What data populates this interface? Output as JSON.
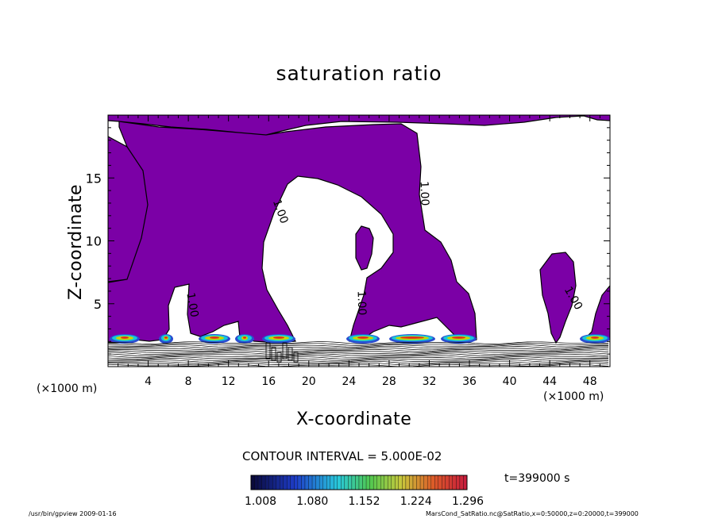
{
  "chart_data": {
    "type": "contour",
    "title": "saturation ratio",
    "xlabel": "X-coordinate",
    "ylabel": "Z-coordinate",
    "x_unit_label": "(×1000 m)",
    "x_ticks": [
      4,
      8,
      12,
      16,
      20,
      24,
      28,
      32,
      36,
      40,
      44,
      48
    ],
    "x_tick_labels": [
      "4",
      "8",
      "12",
      "16",
      "20",
      "24",
      "28",
      "32",
      "36",
      "40",
      "44",
      "48"
    ],
    "y_ticks": [
      5,
      10,
      15
    ],
    "y_tick_labels": [
      "5",
      "10",
      "15"
    ],
    "xlim": [
      0,
      50
    ],
    "ylim": [
      0,
      20
    ],
    "contour_interval_text": "CONTOUR INTERVAL = 5.000E-02",
    "contour_labels": [
      "1.00",
      "1.00",
      "1.00",
      "1.00",
      "1.00"
    ],
    "colorbar": {
      "min": 1.008,
      "max": 1.296,
      "tick_labels": [
        "1.008",
        "1.080",
        "1.152",
        "1.224",
        "1.296"
      ]
    },
    "time_label": "t=399000 s",
    "fill_color": "#7b00a6",
    "footer_left": "/usr/bin/gpview   2009-01-16",
    "footer_right": "MarsCond_SatRatio.nc@SatRatio,x=0:50000,z=0:20000,t=399000"
  }
}
